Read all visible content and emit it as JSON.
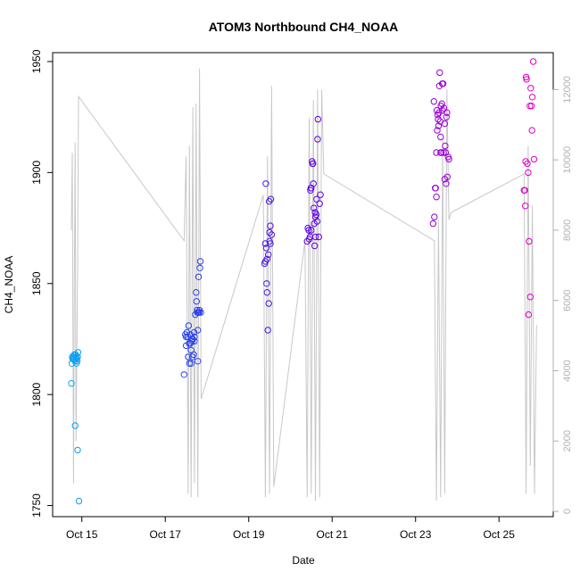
{
  "chart_data": {
    "type": "scatter",
    "title": "ATOM3 Northbound CH4_NOAA",
    "xlabel": "Date",
    "ylabel": "CH4_NOAA",
    "x_ticks": [
      "Oct 15",
      "Oct 17",
      "Oct 19",
      "Oct 21",
      "Oct 23",
      "Oct 25"
    ],
    "x_tick_days": [
      15,
      17,
      19,
      21,
      23,
      25
    ],
    "xlim_days": [
      14.3,
      26.3
    ],
    "ylim": [
      1745,
      1954
    ],
    "y_ticks": [
      1750,
      1800,
      1850,
      1900,
      1950
    ],
    "y2lim": [
      -150,
      13050
    ],
    "y2_ticks": [
      0,
      2000,
      4000,
      6000,
      8000,
      10000,
      12000
    ],
    "grid": false,
    "legend": "none",
    "series": [
      {
        "kind": "points",
        "x_days": [
          14.75,
          14.76,
          14.78,
          14.8,
          14.82,
          14.84,
          14.86,
          14.88,
          14.9,
          14.77,
          14.81,
          14.83,
          14.85,
          14.87,
          14.79,
          14.91,
          14.89,
          14.84,
          14.9,
          14.93
        ],
        "y": [
          1805,
          1814,
          1816,
          1817,
          1818,
          1815,
          1817,
          1816,
          1817,
          1817,
          1817,
          1816,
          1818,
          1814,
          1816,
          1819,
          1815,
          1786,
          1775,
          1752
        ]
      },
      {
        "kind": "points",
        "x_days": [
          17.45,
          17.48,
          17.5,
          17.52,
          17.54,
          17.55,
          17.56,
          17.58,
          17.6,
          17.6,
          17.62,
          17.62,
          17.64,
          17.65,
          17.66,
          17.68,
          17.7,
          17.7,
          17.72,
          17.74,
          17.75,
          17.76,
          17.78,
          17.78,
          17.8,
          17.81,
          17.82,
          17.83,
          17.84,
          17.85,
          17.5,
          17.57,
          17.63,
          17.69,
          17.77,
          17.79
        ],
        "y": [
          1809,
          1827,
          1822,
          1828,
          1826,
          1817,
          1831,
          1814,
          1823,
          1827,
          1814,
          1820,
          1824,
          1817,
          1825,
          1818,
          1826,
          1824,
          1836,
          1846,
          1842,
          1838,
          1815,
          1829,
          1853,
          1837,
          1838,
          1857,
          1860,
          1837,
          1826,
          1823,
          1825,
          1828,
          1837,
          1837
        ]
      },
      {
        "kind": "points",
        "x_days": [
          19.38,
          19.4,
          19.42,
          19.43,
          19.44,
          19.46,
          19.48,
          19.5,
          19.5,
          19.52,
          19.52,
          19.55,
          19.4,
          19.44,
          19.47,
          19.49,
          19.53,
          19.41
        ],
        "y": [
          1859,
          1860,
          1866,
          1850,
          1846,
          1829,
          1841,
          1869,
          1873,
          1876,
          1868,
          1872,
          1868,
          1861,
          1863,
          1887,
          1888,
          1895
        ]
      },
      {
        "kind": "points",
        "x_days": [
          20.4,
          20.42,
          20.45,
          20.47,
          20.48,
          20.5,
          20.5,
          20.52,
          20.53,
          20.55,
          20.56,
          20.57,
          20.58,
          20.6,
          20.6,
          20.62,
          20.63,
          20.65,
          20.66,
          20.68,
          20.7,
          20.72,
          20.44,
          20.49,
          20.54,
          20.59,
          20.64
        ],
        "y": [
          1869,
          1875,
          1870,
          1871,
          1892,
          1874,
          1893,
          1905,
          1904,
          1895,
          1884,
          1877,
          1867,
          1871,
          1880,
          1881,
          1888,
          1915,
          1924,
          1871,
          1886,
          1890,
          1874,
          1893,
          1904,
          1882,
          1878
        ]
      },
      {
        "kind": "points",
        "x_days": [
          23.42,
          23.45,
          23.48,
          23.5,
          23.5,
          23.52,
          23.53,
          23.55,
          23.56,
          23.57,
          23.58,
          23.6,
          23.6,
          23.62,
          23.63,
          23.64,
          23.65,
          23.66,
          23.68,
          23.7,
          23.7,
          23.72,
          23.74,
          23.75,
          23.76,
          23.78,
          23.8,
          23.44,
          23.47,
          23.51,
          23.54,
          23.59,
          23.61,
          23.67,
          23.71,
          23.73
        ],
        "y": [
          1877,
          1880,
          1893,
          1889,
          1909,
          1919,
          1926,
          1921,
          1927,
          1939,
          1945,
          1916,
          1909,
          1909,
          1931,
          1940,
          1928,
          1940,
          1929,
          1897,
          1922,
          1909,
          1925,
          1927,
          1898,
          1907,
          1906,
          1932,
          1893,
          1928,
          1924,
          1923,
          1930,
          1909,
          1912,
          1895
        ]
      },
      {
        "kind": "points",
        "x_days": [
          25.6,
          25.62,
          25.64,
          25.66,
          25.68,
          25.7,
          25.72,
          25.74,
          25.76,
          25.78,
          25.8,
          25.82,
          25.84,
          25.65,
          25.71,
          25.75,
          25.79,
          25.63
        ],
        "y": [
          1892,
          1892,
          1905,
          1942,
          1904,
          1900,
          1869,
          1930,
          1938,
          1930,
          1934,
          1950,
          1906,
          1943,
          1836,
          1844,
          1919,
          1885
        ]
      }
    ],
    "altitude_trace": {
      "axis": "right",
      "x_days": [
        14.75,
        14.77,
        14.8,
        14.82,
        14.84,
        14.86,
        14.9,
        14.92,
        17.45,
        17.5,
        17.55,
        17.58,
        17.62,
        17.66,
        17.7,
        17.74,
        17.78,
        17.82,
        17.86,
        19.35,
        19.4,
        19.45,
        19.5,
        19.55,
        19.6,
        20.35,
        20.4,
        20.45,
        20.5,
        20.55,
        20.6,
        20.65,
        20.7,
        20.75,
        20.8,
        23.45,
        23.5,
        23.55,
        23.6,
        23.65,
        23.7,
        23.75,
        23.8,
        23.85,
        25.6,
        25.65,
        25.7,
        25.75,
        25.8,
        25.85,
        25.9
      ],
      "y": [
        8000,
        10200,
        800,
        6500,
        10500,
        2000,
        7000,
        11800,
        7700,
        10100,
        500,
        10400,
        400,
        11500,
        800,
        11600,
        400,
        12600,
        3200,
        9000,
        400,
        10100,
        500,
        12100,
        700,
        7700,
        400,
        11200,
        500,
        11700,
        300,
        12000,
        400,
        12000,
        9600,
        7700,
        300,
        8300,
        400,
        10600,
        500,
        12000,
        8300,
        8500,
        9600,
        500,
        10400,
        1300,
        8700,
        500,
        5300
      ]
    }
  }
}
